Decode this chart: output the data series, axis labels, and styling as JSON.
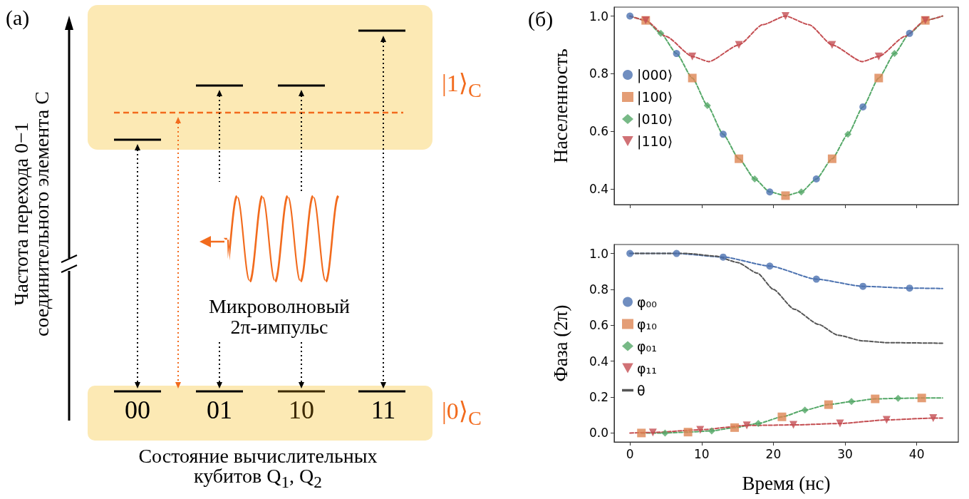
{
  "chart_data": [
    {
      "type": "other",
      "title": "(a)",
      "ylabel": "Частота перехода 0−1 соединительного элемента C",
      "xlabel": "Состояние вычислительных кубитов Q$_{1}$, Q$_{2}$",
      "annotations": [
        "|1⟩$_{C}$",
        "|0⟩$_{C}$",
        "00",
        "01",
        "10",
        "11",
        "Микроволновый 2π-импульс"
      ]
    },
    {
      "type": "scatter",
      "title": "(б)",
      "ylabel": "Населенность",
      "xlim": [
        -2.2,
        45.8
      ],
      "ylim": [
        0.346,
        1.031
      ],
      "xticks": [
        0,
        10,
        20,
        30,
        40
      ],
      "yticks": [
        {
          "value": 0.4,
          "label": "0.4"
        },
        {
          "value": 0.6,
          "label": "0.6"
        },
        {
          "value": 0.8,
          "label": "0.8"
        },
        {
          "value": 1.0,
          "label": "1.0"
        }
      ],
      "tick_labels": "y",
      "grid": false,
      "legend": "left",
      "series": [
        {
          "type": "line",
          "color": "#55a868",
          "line_style": "dashed",
          "marker": "none",
          "x": [
            0,
            2.2,
            4.3,
            6.5,
            8.7,
            10.8,
            13,
            15.2,
            17.4,
            19.5,
            21.7,
            23.9,
            26,
            28.2,
            30.4,
            32.5,
            34.7,
            36.9,
            39,
            41.2,
            43.6
          ],
          "values": [
            1.0,
            0.985,
            0.94,
            0.87,
            0.785,
            0.69,
            0.59,
            0.505,
            0.435,
            0.39,
            0.377,
            0.39,
            0.435,
            0.505,
            0.59,
            0.685,
            0.785,
            0.87,
            0.94,
            0.985,
            1.0
          ]
        },
        {
          "type": "line",
          "color": "#c44e52",
          "line_style": "dashed",
          "marker": "none",
          "x": [
            0,
            2.2,
            5,
            8.7,
            11,
            15.2,
            18.5,
            21.7,
            25,
            28.2,
            32.4,
            34.7,
            38.4,
            41.2,
            43.6
          ],
          "values": [
            1.0,
            0.985,
            0.93,
            0.86,
            0.842,
            0.9,
            0.97,
            1.0,
            0.97,
            0.9,
            0.842,
            0.86,
            0.93,
            0.985,
            1.0
          ]
        },
        {
          "name": "|000⟩",
          "color": "#4c72b0",
          "marker": "circle",
          "x": [
            0,
            6.5,
            13,
            19.5,
            26,
            32.5,
            39
          ],
          "values": [
            1.0,
            0.87,
            0.59,
            0.39,
            0.435,
            0.685,
            0.94
          ]
        },
        {
          "name": "|100⟩",
          "color": "#dd8452",
          "marker": "square",
          "x": [
            2.2,
            8.7,
            15.2,
            21.7,
            28.2,
            34.7,
            41.2
          ],
          "values": [
            0.985,
            0.785,
            0.505,
            0.377,
            0.505,
            0.785,
            0.985
          ]
        },
        {
          "name": "|010⟩",
          "color": "#55a868",
          "marker": "diamond",
          "x": [
            4.3,
            10.8,
            17.4,
            23.9,
            30.4,
            36.9
          ],
          "values": [
            0.94,
            0.69,
            0.435,
            0.39,
            0.59,
            0.87
          ]
        },
        {
          "name": "|110⟩",
          "color": "#c44e52",
          "marker": "triangle",
          "x": [
            2.2,
            8.7,
            15.2,
            21.7,
            28.2,
            34.7,
            41.2
          ],
          "values": [
            0.985,
            0.86,
            0.9,
            1.0,
            0.9,
            0.86,
            0.985
          ]
        }
      ]
    },
    {
      "type": "scatter",
      "xlabel": "Время (нс)",
      "ylabel": "Фаза (2π)",
      "xlim": [
        -2.2,
        45.8
      ],
      "ylim": [
        -0.05,
        1.05
      ],
      "xticks": [
        0,
        10,
        20,
        30,
        40
      ],
      "yticks": [
        {
          "value": 0,
          "label": "0.0"
        },
        {
          "value": 0.2,
          "label": "0.2"
        },
        {
          "value": 0.4,
          "label": "0.4"
        },
        {
          "value": 0.6,
          "label": "0.6"
        },
        {
          "value": 0.8,
          "label": "0.8"
        },
        {
          "value": 1.0,
          "label": "1.0"
        }
      ],
      "grid": false,
      "legend": "left",
      "series": [
        {
          "type": "line",
          "color": "#4c72b0",
          "line_style": "dashed",
          "marker": "none",
          "x": [
            0,
            6.5,
            13,
            19.5,
            26,
            32.5,
            39,
            43.6
          ],
          "values": [
            1.0,
            1.0,
            0.98,
            0.93,
            0.857,
            0.817,
            0.807,
            0.805
          ]
        },
        {
          "type": "line",
          "color": "#55a868",
          "line_style": "dashed",
          "marker": "none",
          "x": [
            1.6,
            4.9,
            8.1,
            11.4,
            14.6,
            17.9,
            21.2,
            24.4,
            27.7,
            30.9,
            34.2,
            37.4,
            40.7,
            43.6
          ],
          "values": [
            0,
            0,
            0.005,
            0.012,
            0.03,
            0.053,
            0.09,
            0.128,
            0.158,
            0.175,
            0.19,
            0.193,
            0.195,
            0.195
          ]
        },
        {
          "type": "line",
          "color": "#c44e52",
          "line_style": "dashed",
          "marker": "none",
          "x": [
            0,
            3.2,
            9.8,
            16.3,
            22.8,
            29.3,
            35.8,
            42.3,
            43.6
          ],
          "values": [
            0,
            0.003,
            0.018,
            0.042,
            0.045,
            0.053,
            0.073,
            0.083,
            0.083
          ]
        },
        {
          "name": "φ₀₀",
          "color": "#4c72b0",
          "marker": "circle",
          "x": [
            0,
            6.5,
            13,
            19.5,
            26,
            32.5,
            39
          ],
          "values": [
            1.0,
            1.0,
            0.98,
            0.93,
            0.857,
            0.817,
            0.807
          ]
        },
        {
          "name": "φ₁₀",
          "color": "#dd8452",
          "marker": "square",
          "x": [
            1.6,
            8.1,
            14.6,
            21.2,
            27.7,
            34.2,
            40.7
          ],
          "values": [
            0.0,
            0.005,
            0.03,
            0.09,
            0.158,
            0.19,
            0.195
          ]
        },
        {
          "name": "φ₀₁",
          "color": "#55a868",
          "marker": "diamond",
          "x": [
            4.9,
            11.4,
            17.9,
            24.4,
            30.9,
            37.4
          ],
          "values": [
            0.0,
            0.012,
            0.053,
            0.128,
            0.175,
            0.193
          ]
        },
        {
          "name": "φ₁₁",
          "color": "#c44e52",
          "marker": "triangle",
          "x": [
            3.2,
            9.8,
            16.3,
            22.8,
            29.3,
            35.8,
            42.3
          ],
          "values": [
            0.003,
            0.018,
            0.042,
            0.045,
            0.053,
            0.073,
            0.083
          ]
        },
        {
          "name": "θ",
          "type": "line",
          "color": "#555555",
          "line_style": "dashed",
          "marker": "none",
          "x": [
            0,
            8,
            12,
            15,
            17.8,
            20,
            22.9,
            26.3,
            29,
            32.5,
            36,
            43.6
          ],
          "values": [
            1.0,
            1.0,
            0.985,
            0.95,
            0.89,
            0.8,
            0.69,
            0.605,
            0.545,
            0.513,
            0.503,
            0.5
          ]
        }
      ]
    }
  ]
}
